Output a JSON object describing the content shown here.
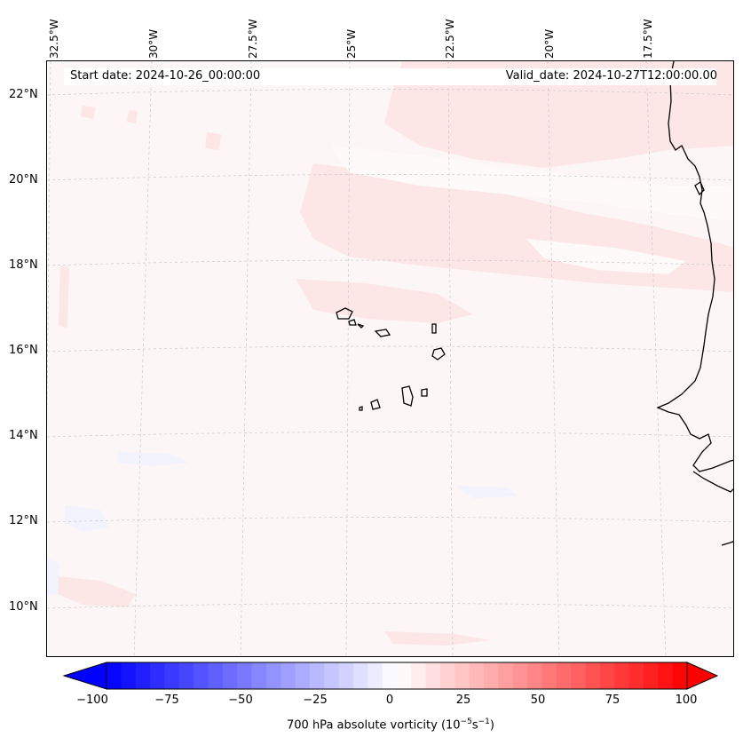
{
  "map": {
    "start_label": "Start date: 2024-10-26_00:00:00",
    "valid_label": "Valid_date: 2024-10-27T12:00:00.00",
    "lon_labels": [
      "32.5°W",
      "30°W",
      "27.5°W",
      "25°W",
      "22.5°W",
      "20°W",
      "17.5°W"
    ],
    "lat_labels": [
      "22°N",
      "20°N",
      "18°N",
      "16°N",
      "14°N",
      "12°N",
      "10°N"
    ],
    "background_color": "#fdf6f6",
    "positive_tint": "#fde6e6",
    "negative_tint": "#f3f3fd"
  },
  "colorbar": {
    "ticks": [
      "−100",
      "−75",
      "−50",
      "−25",
      "0",
      "25",
      "50",
      "75",
      "100"
    ],
    "label_prefix": "700 hPa absolute vorticity (10",
    "label_exp1": "−5",
    "label_mid": "s",
    "label_exp2": "−1",
    "label_suffix": ")",
    "min_color": "#0000ff",
    "mid_color": "#ffffff",
    "max_color": "#ff0000"
  }
}
